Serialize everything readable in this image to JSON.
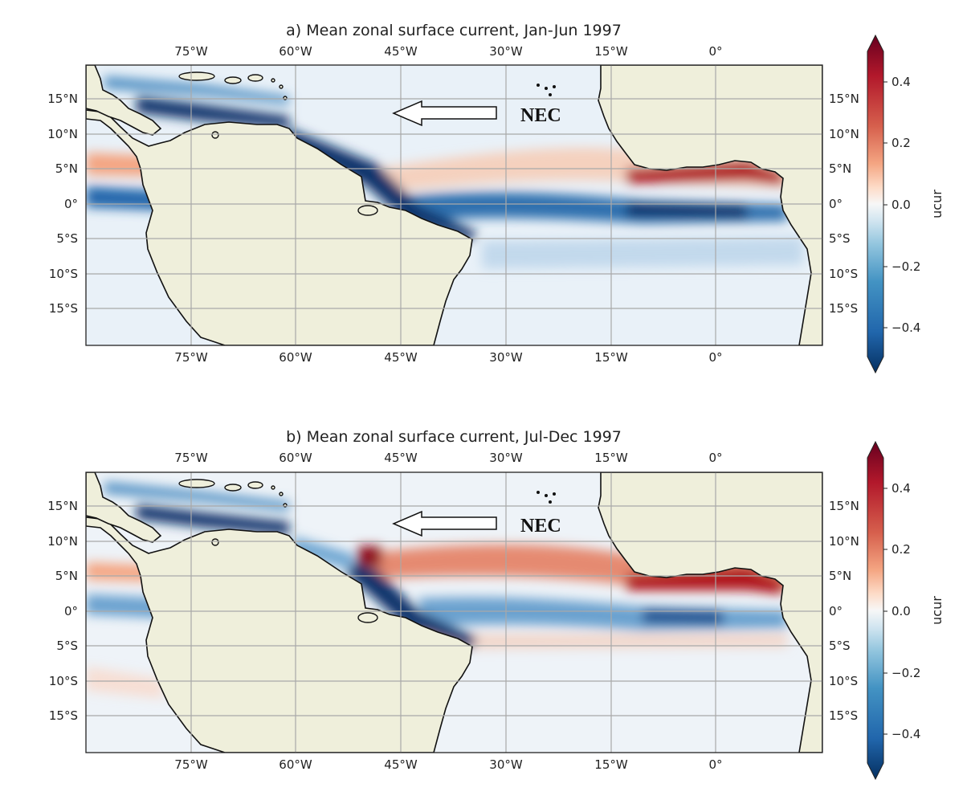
{
  "figure": {
    "colors": {
      "strong_west": "#08306b",
      "mid_west": "#4f8fc3",
      "weak_west": "#d4e4f2",
      "neutral": "#f7f7f7",
      "weak_east": "#f4c7b0",
      "mid_east": "#e07a61",
      "strong_east": "#b0151f",
      "land": "#efefdb"
    }
  },
  "chart_data": [
    {
      "type": "heatmap",
      "panel": "a",
      "title": "a) Mean zonal surface current, Jan-Jun 1997",
      "x_ticks": [
        "75°W",
        "60°W",
        "45°W",
        "30°W",
        "15°W",
        "0°"
      ],
      "y_ticks": [
        "15°N",
        "10°N",
        "5°N",
        "0°",
        "5°S",
        "10°S",
        "15°S"
      ],
      "x_range": [
        -90,
        15
      ],
      "y_range": [
        -20,
        20
      ],
      "variable": "ucur",
      "colorbar": {
        "label": "ucur",
        "ticks": [
          "0.4",
          "0.2",
          "0.0",
          "−0.2",
          "−0.4"
        ],
        "range": [
          -0.5,
          0.5
        ]
      },
      "annotation": {
        "text": "NEC",
        "arrow_direction": "west",
        "lon_from": -31,
        "lon_to": -46,
        "lat": 13
      }
    },
    {
      "type": "heatmap",
      "panel": "b",
      "title": "b) Mean zonal surface current, Jul-Dec 1997",
      "x_ticks": [
        "75°W",
        "60°W",
        "45°W",
        "30°W",
        "15°W",
        "0°"
      ],
      "y_ticks": [
        "15°N",
        "10°N",
        "5°N",
        "0°",
        "5°S",
        "10°S",
        "15°S"
      ],
      "x_range": [
        -90,
        15
      ],
      "y_range": [
        -20,
        20
      ],
      "variable": "ucur",
      "colorbar": {
        "label": "ucur",
        "ticks": [
          "0.4",
          "0.2",
          "0.0",
          "−0.2",
          "−0.4"
        ],
        "range": [
          -0.5,
          0.5
        ]
      },
      "annotation": {
        "text": "NEC",
        "arrow_direction": "west",
        "lon_from": -31,
        "lon_to": -46,
        "lat": 13
      }
    }
  ]
}
